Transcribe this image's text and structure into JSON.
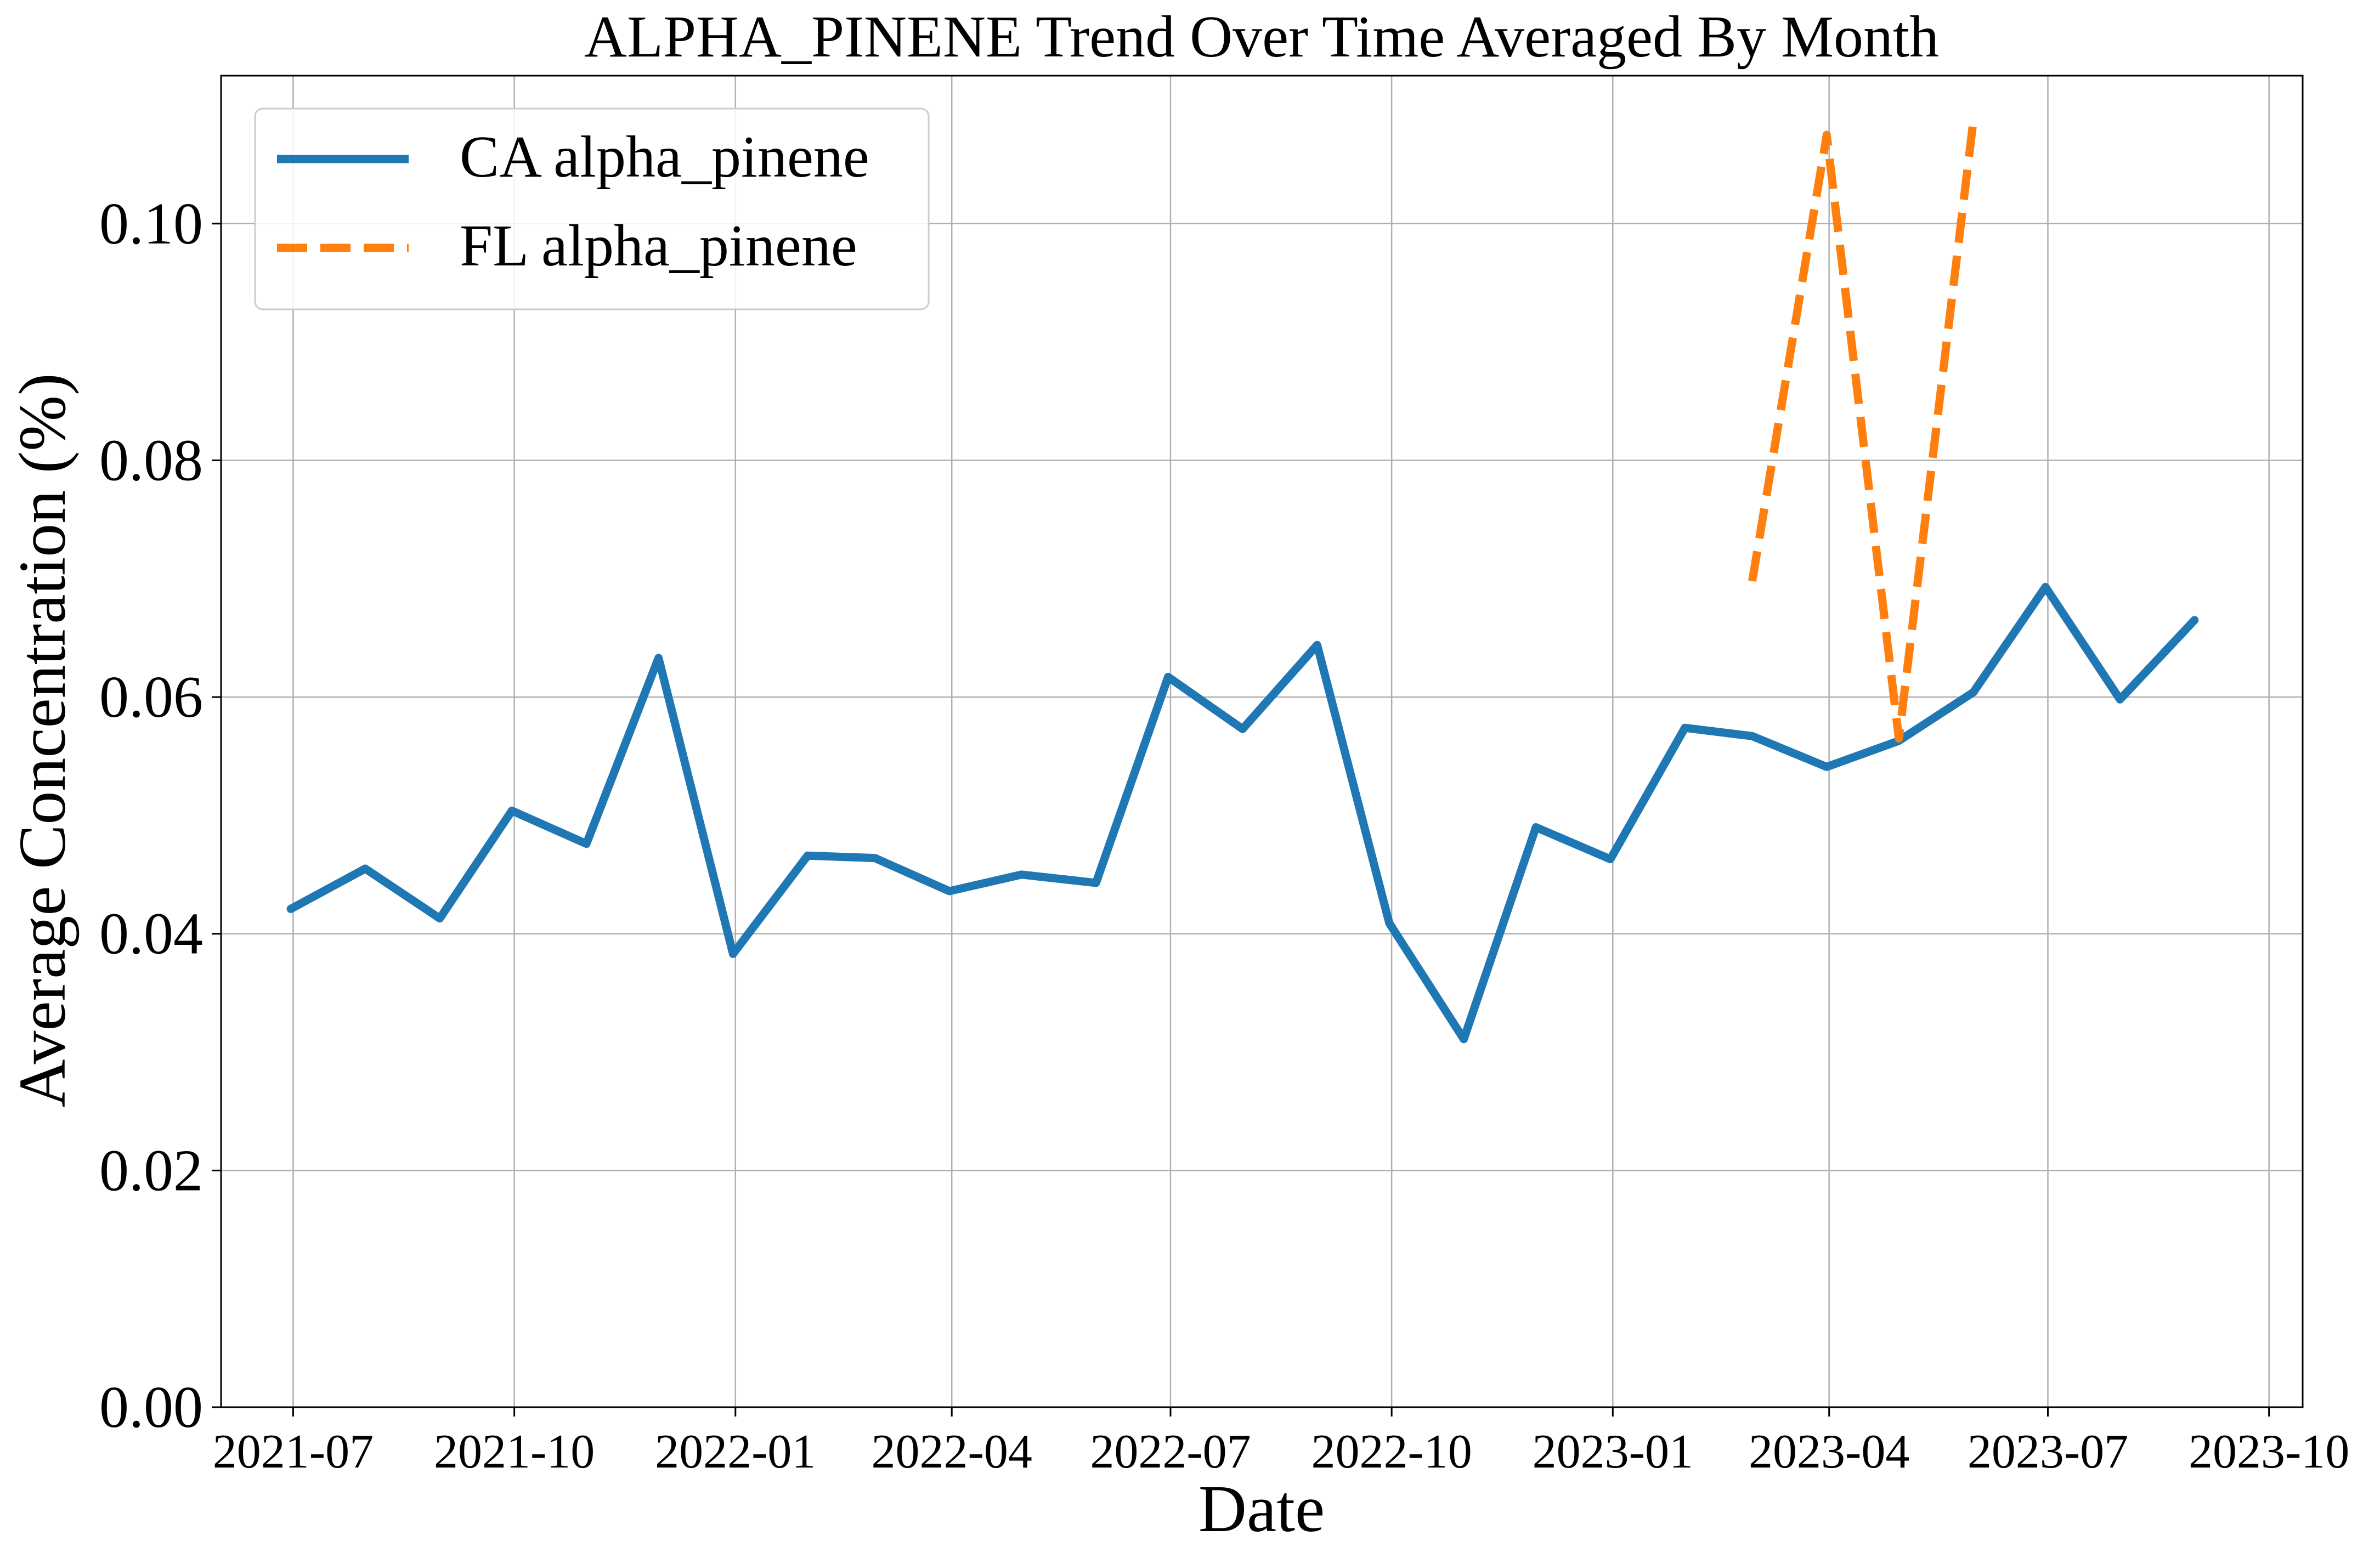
{
  "chart_data": {
    "type": "line",
    "title": "ALPHA_PINENE Trend Over Time Averaged By Month",
    "xlabel": "Date",
    "ylabel": "Average Concentration (%)",
    "xlim": [
      "2021-06-01",
      "2023-10-15"
    ],
    "ylim": [
      0,
      0.1125
    ],
    "grid": true,
    "legend_position": "top-left",
    "x_ticks": [
      "2021-07",
      "2021-10",
      "2022-01",
      "2022-04",
      "2022-07",
      "2022-10",
      "2023-01",
      "2023-04",
      "2023-07",
      "2023-10"
    ],
    "y_ticks": [
      "0.00",
      "0.02",
      "0.04",
      "0.06",
      "0.08",
      "0.10"
    ],
    "series": [
      {
        "name": "CA alpha_pinene",
        "color": "#1f77b4",
        "style": "solid",
        "x": [
          "2021-06-30",
          "2021-07-31",
          "2021-08-31",
          "2021-09-30",
          "2021-10-31",
          "2021-11-30",
          "2021-12-31",
          "2022-01-31",
          "2022-02-28",
          "2022-03-31",
          "2022-04-30",
          "2022-05-31",
          "2022-06-30",
          "2022-07-31",
          "2022-08-31",
          "2022-09-30",
          "2022-10-31",
          "2022-11-30",
          "2022-12-31",
          "2023-01-31",
          "2023-02-28",
          "2023-03-31",
          "2023-04-30",
          "2023-05-31",
          "2023-06-30",
          "2023-07-31",
          "2023-08-31"
        ],
        "values": [
          0.0421,
          0.0455,
          0.0413,
          0.0504,
          0.0476,
          0.0633,
          0.0383,
          0.0466,
          0.0464,
          0.0436,
          0.045,
          0.0443,
          0.0617,
          0.0573,
          0.0644,
          0.0409,
          0.0311,
          0.049,
          0.0463,
          0.0574,
          0.0567,
          0.0541,
          0.0563,
          0.0604,
          0.0693,
          0.0598,
          0.0665
        ]
      },
      {
        "name": "FL alpha_pinene",
        "color": "#ff7f0e",
        "style": "dashed",
        "x": [
          "2023-02-28",
          "2023-03-31",
          "2023-04-30",
          "2023-05-31"
        ],
        "values": [
          0.0698,
          0.1075,
          0.0565,
          0.1087
        ]
      }
    ]
  }
}
